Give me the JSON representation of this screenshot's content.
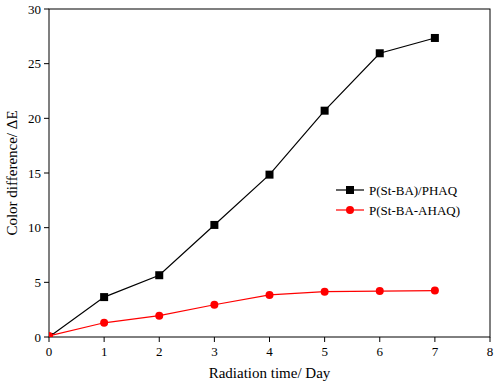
{
  "chart_data": {
    "type": "line",
    "x_label": "Radiation time/ Day",
    "y_label": "Color difference/ ΔE",
    "x": [
      0,
      1,
      2,
      3,
      4,
      5,
      6,
      7
    ],
    "series": [
      {
        "name": "P(St-BA)/PHAQ",
        "color": "#000000",
        "marker": "square",
        "line_style": "solid",
        "values": [
          0,
          3.65,
          5.65,
          10.25,
          14.85,
          20.7,
          25.95,
          27.35
        ]
      },
      {
        "name": "P(St-BA-AHAQ)",
        "color": "#ff0000",
        "marker": "circle",
        "line_style": "solid",
        "values": [
          0.1,
          1.3,
          1.95,
          2.95,
          3.85,
          4.15,
          4.2,
          4.25
        ]
      }
    ],
    "xlim": [
      0,
      8
    ],
    "xticks": [
      0,
      1,
      2,
      3,
      4,
      5,
      6,
      7,
      8
    ],
    "ylim": [
      0,
      30
    ],
    "yticks": [
      0,
      5,
      10,
      15,
      20,
      25,
      30
    ],
    "grid": false,
    "legend": "right"
  }
}
